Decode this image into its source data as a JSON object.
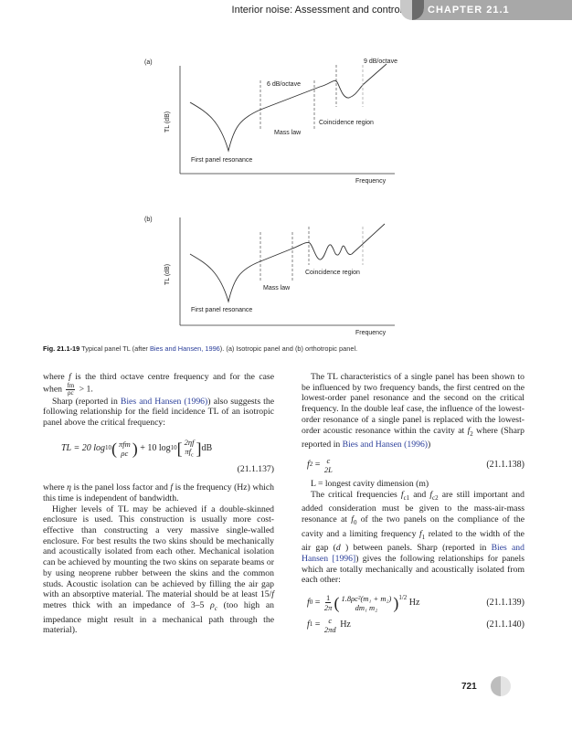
{
  "header": {
    "running_title": "Interior noise: Assessment and control",
    "chapter": "CHAPTER 21.1"
  },
  "figure": {
    "a": {
      "label": "(a)",
      "ylabel": "TL (dB)",
      "xlabel": "Frequency",
      "annotations": {
        "slope1": "6 dB/octave",
        "slope2": "9 dB/octave",
        "coincidence": "Coincidence region",
        "mass": "Mass law",
        "resonance": "First panel resonance"
      }
    },
    "b": {
      "label": "(b)",
      "ylabel": "TL (dB)",
      "xlabel": "Frequency",
      "annotations": {
        "coincidence": "Coincidence region",
        "mass": "Mass law",
        "resonance": "First panel resonance"
      }
    },
    "caption": {
      "num": "Fig. 21.1-19",
      "pre": " Typical panel TL (after ",
      "link": "Bies and Hansen, 1996",
      "post": "). (a) Isotropic panel and (b) orthotropic panel."
    }
  },
  "left": {
    "p1": {
      "a": "where ",
      "f": "f",
      "b": " is the third octave centre frequency and for the case when ",
      "fnum": "fm",
      "fden": "ρc",
      "c": " > 1."
    },
    "p2": {
      "a": "Sharp (reported in ",
      "link": "Bies and Hansen (1996)",
      "b": ") also suggests the following relationship for the field incidence TL of an isotropic panel above the critical frequency:"
    },
    "eq137": {
      "lhs": "TL = 20 log",
      "sub": "10",
      "n1": "πfm",
      "d1": "ρc",
      "mid": "+ 10 log",
      "n2": "2ηf",
      "d2": "πf",
      "d2sub": "c",
      "unit": "dB",
      "num": "(21.1.137)"
    },
    "p3": {
      "a": "where ",
      "eta": "η",
      "b": " is the panel loss factor and ",
      "f": "f",
      "c": " is the frequency (Hz) which this time is independent of bandwidth."
    },
    "p4": {
      "a": "Higher levels of TL may be achieved if a double-skinned enclosure is used. This construction is usually more cost-effective than constructing a very massive single-walled enclosure. For best results the two skins should be mechanically and acoustically isolated from each other. Mechanical isolation can be achieved by mounting the two skins on separate beams or by using neoprene rubber between the skins and the common studs. Acoustic isolation can be achieved by filling the air gap with an absorptive material. The material should be at least 15/",
      "f": "f",
      "b": " metres thick with an impedance of 3–5 ",
      "rho": "ρ",
      "rhosub": "c",
      "c": " (too high an impedance might result in a mechanical path through the material)."
    }
  },
  "right": {
    "p1": {
      "a": "The TL characteristics of a single panel has been shown to be influenced by two frequency bands, the first centred on the lowest-order panel resonance and the second on the critical frequency. In the double leaf case, the influence of the lowest-order resonance of a single panel is replaced with the lowest-order acoustic resonance within the cavity at ",
      "f2": "f",
      "f2sub": "2",
      "b": " where (Sharp reported in ",
      "link": "Bies and Hansen (1996)",
      "c": ")"
    },
    "eq138": {
      "lhs": "f",
      "lhssub": "2",
      "eq": " = ",
      "num_": "c",
      "den": "2L",
      "num": "(21.1.138)"
    },
    "def": "L = longest cavity dimension (m)",
    "p2": {
      "a": "The critical frequencies ",
      "fc1": "f",
      "fc1sub": "c1",
      "b": " and ",
      "fc2": "f",
      "fc2sub": "c2",
      "c": " are still important and added consideration must be given to the mass-air-mass resonance at ",
      "f0": "f",
      "f0sub": "0",
      "d": " of the two panels on the compliance of the cavity and a limiting frequency ",
      "f1": "f",
      "f1sub": "1",
      "e": " related to the width of the air gap (",
      "dvar": "d",
      "g": " ) between panels. Sharp (reported in ",
      "link": "Bies and Hansen [1996]",
      "h": ") gives the following relationships for panels which are totally mechanically and acoustically isolated from each other:"
    },
    "eq139": {
      "lhs": "f",
      "lhssub": "0",
      "eq": " = ",
      "n1": "1",
      "d1": "2π",
      "n2": "1.8ρc²(m₁ + m₂)",
      "d2": "dm₁ m₂",
      "exp": "1/2",
      "unit": "Hz",
      "num": "(21.1.139)"
    },
    "eq140": {
      "lhs": "f",
      "lhssub": "1",
      "eq": " = ",
      "n1": "c",
      "d1": "2πd",
      "unit": "Hz",
      "num": "(21.1.140)"
    }
  },
  "page_number": "721"
}
